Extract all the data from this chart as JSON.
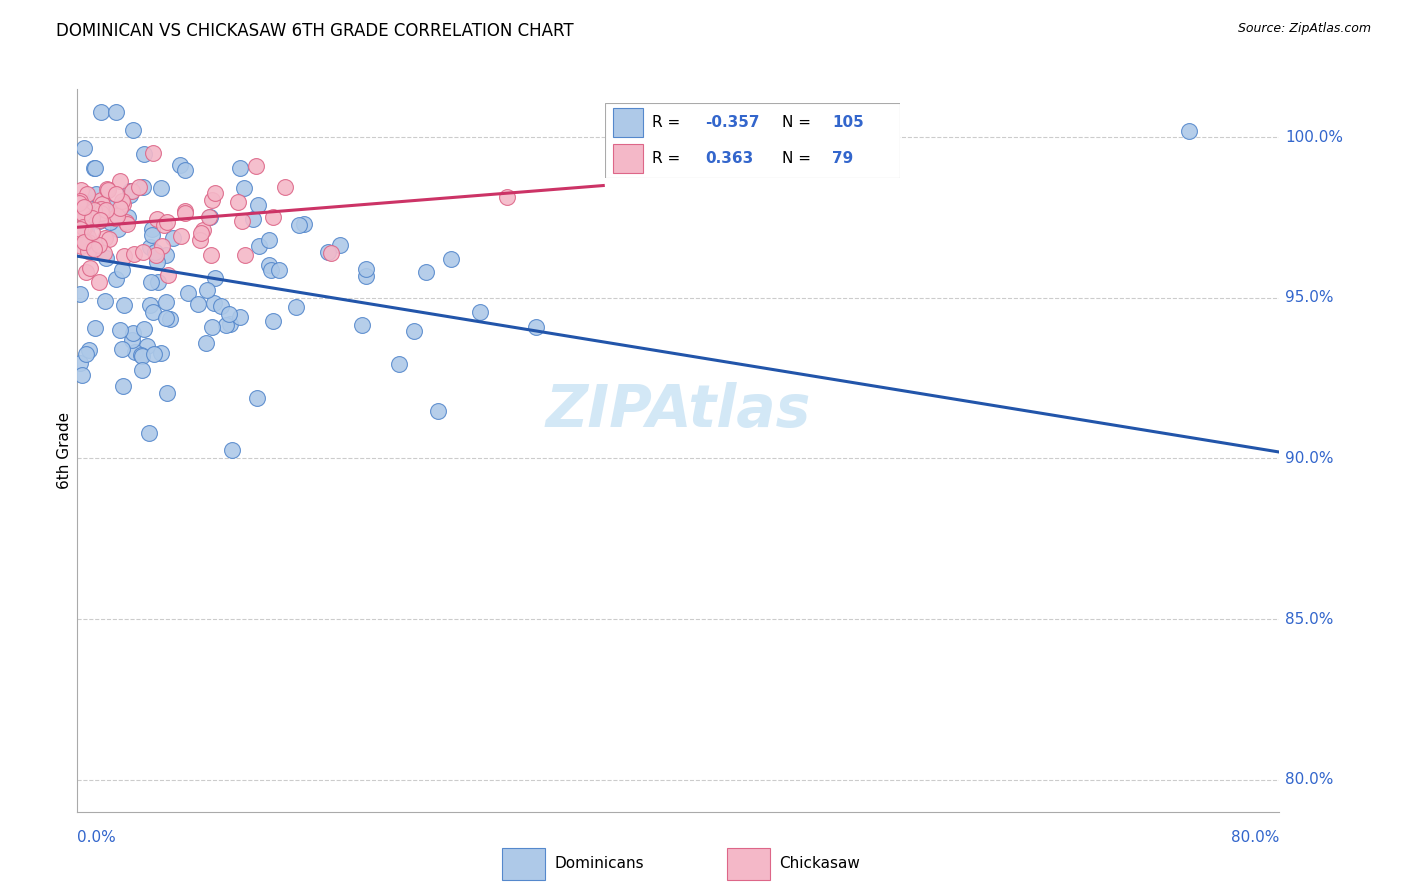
{
  "title": "DOMINICAN VS CHICKASAW 6TH GRADE CORRELATION CHART",
  "source": "Source: ZipAtlas.com",
  "ylabel": "6th Grade",
  "yticks_right": [
    80.0,
    85.0,
    90.0,
    95.0,
    100.0
  ],
  "xlim": [
    0.0,
    80.0
  ],
  "ylim": [
    79.0,
    101.5
  ],
  "legend_blue_R": "-0.357",
  "legend_blue_N": "105",
  "legend_pink_R": "0.363",
  "legend_pink_N": "79",
  "blue_fill": "#aec9e8",
  "pink_fill": "#f4b8c8",
  "blue_edge": "#5588cc",
  "pink_edge": "#dd6688",
  "blue_line": "#2255aa",
  "pink_line": "#cc3366",
  "label_color": "#3366cc",
  "grid_color": "#cccccc",
  "watermark_color": "#cce4f5",
  "title_fontsize": 12,
  "axis_fontsize": 11,
  "source_fontsize": 9,
  "legend_fontsize": 11,
  "blue_trend_x0": 0.0,
  "blue_trend_y0": 96.3,
  "blue_trend_x1": 80.0,
  "blue_trend_y1": 90.2,
  "pink_trend_x0": 0.0,
  "pink_trend_y0": 97.2,
  "pink_trend_x1": 35.0,
  "pink_trend_y1": 98.5
}
